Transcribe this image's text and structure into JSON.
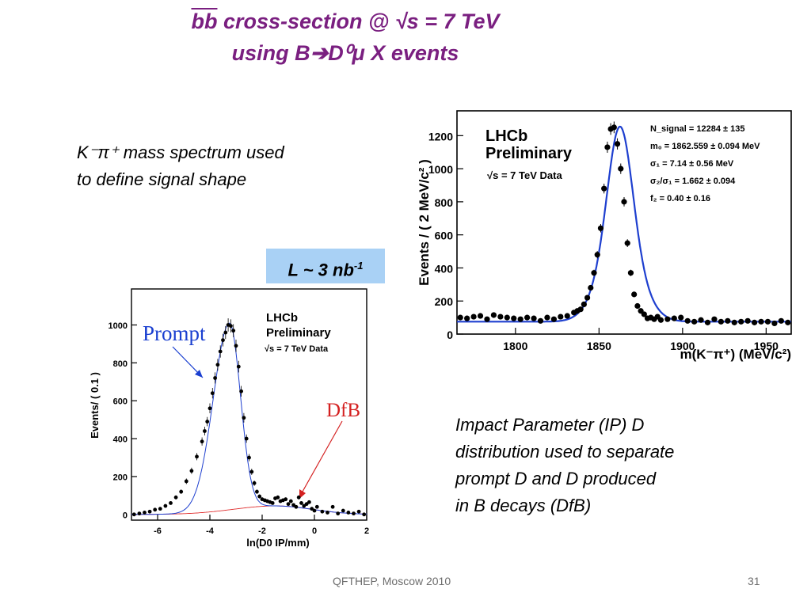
{
  "slide": {
    "title_line1_bb": "bb",
    "title_line1_rest": " cross-section @ √s = 7 TeV",
    "title_line2": "using B➔D⁰μ X events",
    "mass_caption_line1": "K⁻π⁺ mass spectrum used",
    "mass_caption_line2": "to define signal shape",
    "ip_caption_lines": [
      "Impact Parameter (IP) D",
      "distribution used to separate",
      "prompt D and D produced",
      "in B decays (DfB)"
    ],
    "lumi_label": "L ~ 3 nb",
    "lumi_exp": "-1",
    "footer_center": "QFTHEP, Moscow 2010",
    "footer_page": "31"
  },
  "colors": {
    "title": "#7a1f80",
    "fit_line": "#1e3fcf",
    "bkg_line": "#e03030",
    "lumi_box": "#a9d1f5",
    "annot_prompt": "#1a3fd0",
    "annot_dfb": "#d42020"
  },
  "chart_data": [
    {
      "type": "scatter",
      "id": "mass",
      "xlabel": "m(K⁻π⁺) (MeV/c²)",
      "ylabel": "Events / ( 2 MeV/c² )",
      "xlim": [
        1765,
        1965
      ],
      "ylim": [
        0,
        1350
      ],
      "xticks": [
        1800,
        1850,
        1900,
        1950
      ],
      "yticks": [
        0,
        200,
        400,
        600,
        800,
        1000,
        1200
      ],
      "grid": false,
      "legend_lines": [
        "LHCb",
        "Preliminary",
        "√s = 7 TeV Data"
      ],
      "stats": [
        "N_signal = 12284 ± 135",
        "m₀ = 1862.559 ± 0.094 MeV",
        "σ₁ = 7.14 ± 0.56 MeV",
        "σ₂/σ₁ = 1.662 ± 0.094",
        "f₂ = 0.40 ± 0.16"
      ],
      "fit": {
        "background": 75,
        "peak": 1180,
        "mean": 1862.559,
        "sigma1": 7.14,
        "sigma2_ratio": 1.662,
        "f2": 0.4
      },
      "points": {
        "x": [
          1767,
          1771,
          1775,
          1779,
          1783,
          1787,
          1791,
          1795,
          1799,
          1803,
          1807,
          1811,
          1815,
          1819,
          1823,
          1827,
          1831,
          1835,
          1837,
          1839,
          1841,
          1843,
          1845,
          1847,
          1849,
          1851,
          1853,
          1855,
          1857,
          1859,
          1861,
          1863,
          1865,
          1867,
          1869,
          1871,
          1873,
          1875,
          1877,
          1879,
          1881,
          1883,
          1885,
          1887,
          1891,
          1895,
          1899,
          1903,
          1907,
          1911,
          1915,
          1919,
          1923,
          1927,
          1931,
          1935,
          1939,
          1943,
          1947,
          1951,
          1955,
          1959,
          1963
        ],
        "y": [
          100,
          95,
          105,
          110,
          90,
          115,
          105,
          100,
          95,
          90,
          100,
          95,
          80,
          100,
          90,
          105,
          110,
          130,
          140,
          150,
          180,
          220,
          280,
          370,
          480,
          640,
          880,
          1130,
          1240,
          1250,
          1150,
          1000,
          800,
          550,
          370,
          240,
          170,
          140,
          120,
          95,
          100,
          90,
          105,
          85,
          90,
          95,
          100,
          80,
          75,
          85,
          70,
          90,
          75,
          80,
          70,
          75,
          80,
          70,
          75,
          75,
          65,
          80,
          70
        ]
      }
    },
    {
      "type": "scatter",
      "id": "ip",
      "xlabel": "ln(D0 IP/mm)",
      "ylabel": "Events/ ( 0.1 )",
      "xlim": [
        -7,
        2
      ],
      "ylim": [
        -30,
        1190
      ],
      "xticks": [
        -6,
        -4,
        -2,
        0,
        2
      ],
      "yticks": [
        0,
        200,
        400,
        600,
        800,
        1000
      ],
      "grid": false,
      "legend_lines": [
        "LHCb",
        "Preliminary",
        "√s = 7 TeV Data"
      ],
      "annotations": [
        "Prompt",
        "DfB"
      ],
      "points": {
        "x": [
          -6.9,
          -6.7,
          -6.5,
          -6.3,
          -6.1,
          -5.9,
          -5.7,
          -5.5,
          -5.3,
          -5.1,
          -4.9,
          -4.7,
          -4.5,
          -4.3,
          -4.2,
          -4.1,
          -4.0,
          -3.9,
          -3.8,
          -3.7,
          -3.6,
          -3.5,
          -3.4,
          -3.3,
          -3.2,
          -3.1,
          -3.0,
          -2.9,
          -2.8,
          -2.7,
          -2.6,
          -2.5,
          -2.4,
          -2.3,
          -2.2,
          -2.1,
          -2.0,
          -1.9,
          -1.8,
          -1.7,
          -1.6,
          -1.5,
          -1.4,
          -1.3,
          -1.2,
          -1.1,
          -1.0,
          -0.9,
          -0.8,
          -0.7,
          -0.6,
          -0.5,
          -0.4,
          -0.3,
          -0.2,
          -0.1,
          0.0,
          0.1,
          0.3,
          0.5,
          0.7,
          0.9,
          1.1,
          1.3,
          1.5,
          1.7,
          1.9
        ],
        "y": [
          0,
          5,
          10,
          15,
          25,
          30,
          45,
          60,
          90,
          120,
          175,
          230,
          305,
          385,
          440,
          490,
          560,
          640,
          720,
          790,
          860,
          920,
          960,
          1000,
          995,
          970,
          890,
          780,
          650,
          510,
          400,
          300,
          225,
          165,
          120,
          95,
          80,
          75,
          70,
          65,
          60,
          85,
          90,
          70,
          75,
          80,
          55,
          70,
          50,
          40,
          90,
          60,
          45,
          55,
          65,
          30,
          20,
          40,
          15,
          10,
          40,
          5,
          20,
          10,
          5,
          15,
          0
        ]
      },
      "fit": {
        "background_peak": 45,
        "background_mean": -1.5,
        "prompt_peak": 985,
        "prompt_mean": -3.25
      }
    }
  ]
}
